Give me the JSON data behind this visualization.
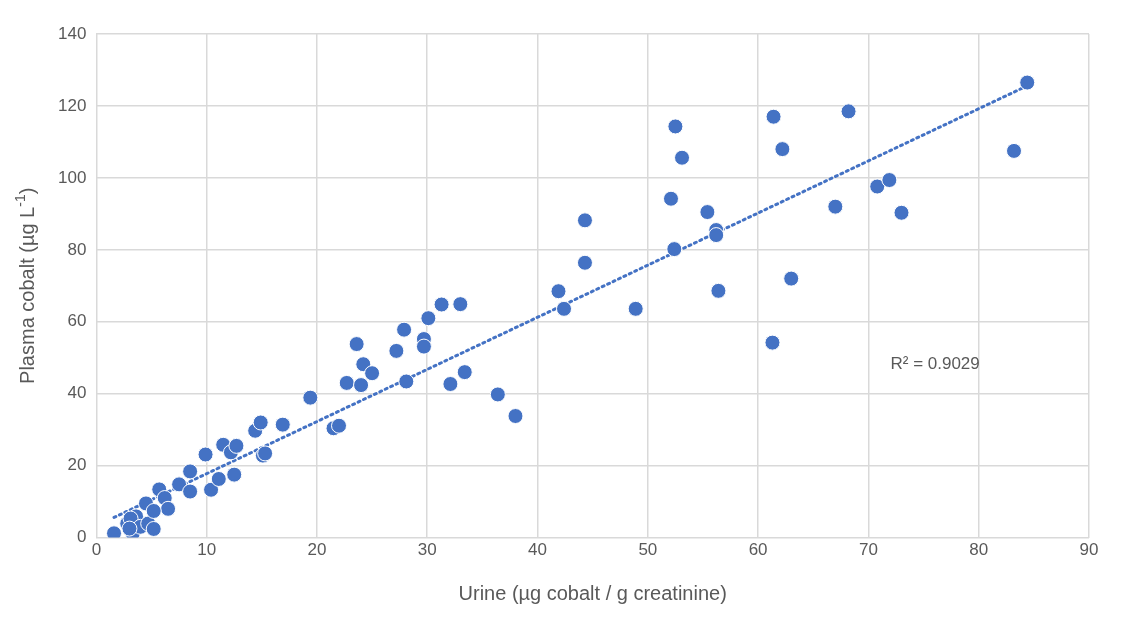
{
  "chart_data": {
    "type": "scatter",
    "xlabel": "Urine (µg cobalt / g creatinine)",
    "ylabel": "Plasma cobalt (µg L$^{-1}$)",
    "xlim": [
      0,
      90
    ],
    "xticks": [
      0,
      10,
      20,
      30,
      40,
      50,
      60,
      70,
      80,
      90
    ],
    "ylim": [
      0,
      140
    ],
    "yticks": [
      0,
      20,
      40,
      60,
      80,
      100,
      120,
      140
    ],
    "grid": true,
    "legend": false,
    "annotations": [
      "R² = 0.9029"
    ],
    "series": [
      {
        "type": "scatter",
        "marker": "circle",
        "color": "#4472c4",
        "x": [
          1.6,
          2.8,
          3.3,
          3.6,
          3.1,
          4,
          3,
          4.7,
          5.2,
          4.5,
          5.7,
          6.2,
          6.5,
          5.2,
          7.5,
          8.5,
          8.5,
          9.9,
          10.4,
          11.1,
          11.5,
          12.2,
          12.7,
          12.5,
          14.4,
          14.9,
          15.1,
          15.3,
          16.9,
          19.4,
          21.5,
          22,
          22.7,
          23.6,
          24.2,
          24,
          25,
          27.2,
          27.9,
          28.1,
          29.7,
          29.7,
          30.1,
          31.3,
          33,
          32.1,
          33.4,
          36.4,
          38,
          41.9,
          42.4,
          44.3,
          44.3,
          48.9,
          52.1,
          52.5,
          52.4,
          53.1,
          55.4,
          56.2,
          56.2,
          56.4,
          61.3,
          61.4,
          62.2,
          63,
          67,
          68.2,
          70.8,
          71.9,
          73,
          83.2,
          84.4
        ],
        "values": [
          1.2,
          3.9,
          1.2,
          5.9,
          5.3,
          3,
          2.5,
          3.9,
          2.4,
          9.5,
          13.4,
          11,
          8,
          7.4,
          14.8,
          18.4,
          12.8,
          23.1,
          13.3,
          16.3,
          25.8,
          23.7,
          25.5,
          17.5,
          29.7,
          32,
          22.8,
          23.4,
          31.4,
          38.9,
          30.4,
          31.1,
          43,
          53.8,
          48.2,
          42.4,
          45.7,
          51.9,
          57.8,
          43.4,
          55.2,
          53.1,
          61,
          64.8,
          64.9,
          42.7,
          46,
          39.8,
          33.8,
          68.5,
          63.6,
          76.4,
          88.2,
          63.6,
          94.2,
          114.3,
          80.2,
          105.6,
          90.5,
          85.5,
          84.1,
          68.6,
          54.2,
          117,
          108,
          72,
          92,
          118.5,
          97.6,
          99.4,
          90.3,
          107.5,
          126.5
        ]
      },
      {
        "type": "line",
        "marker": "none",
        "color": "#4472c4",
        "line_style": "dotted",
        "x": [
          1.6,
          84.4
        ],
        "values": [
          5.6,
          125.6
        ]
      }
    ]
  }
}
